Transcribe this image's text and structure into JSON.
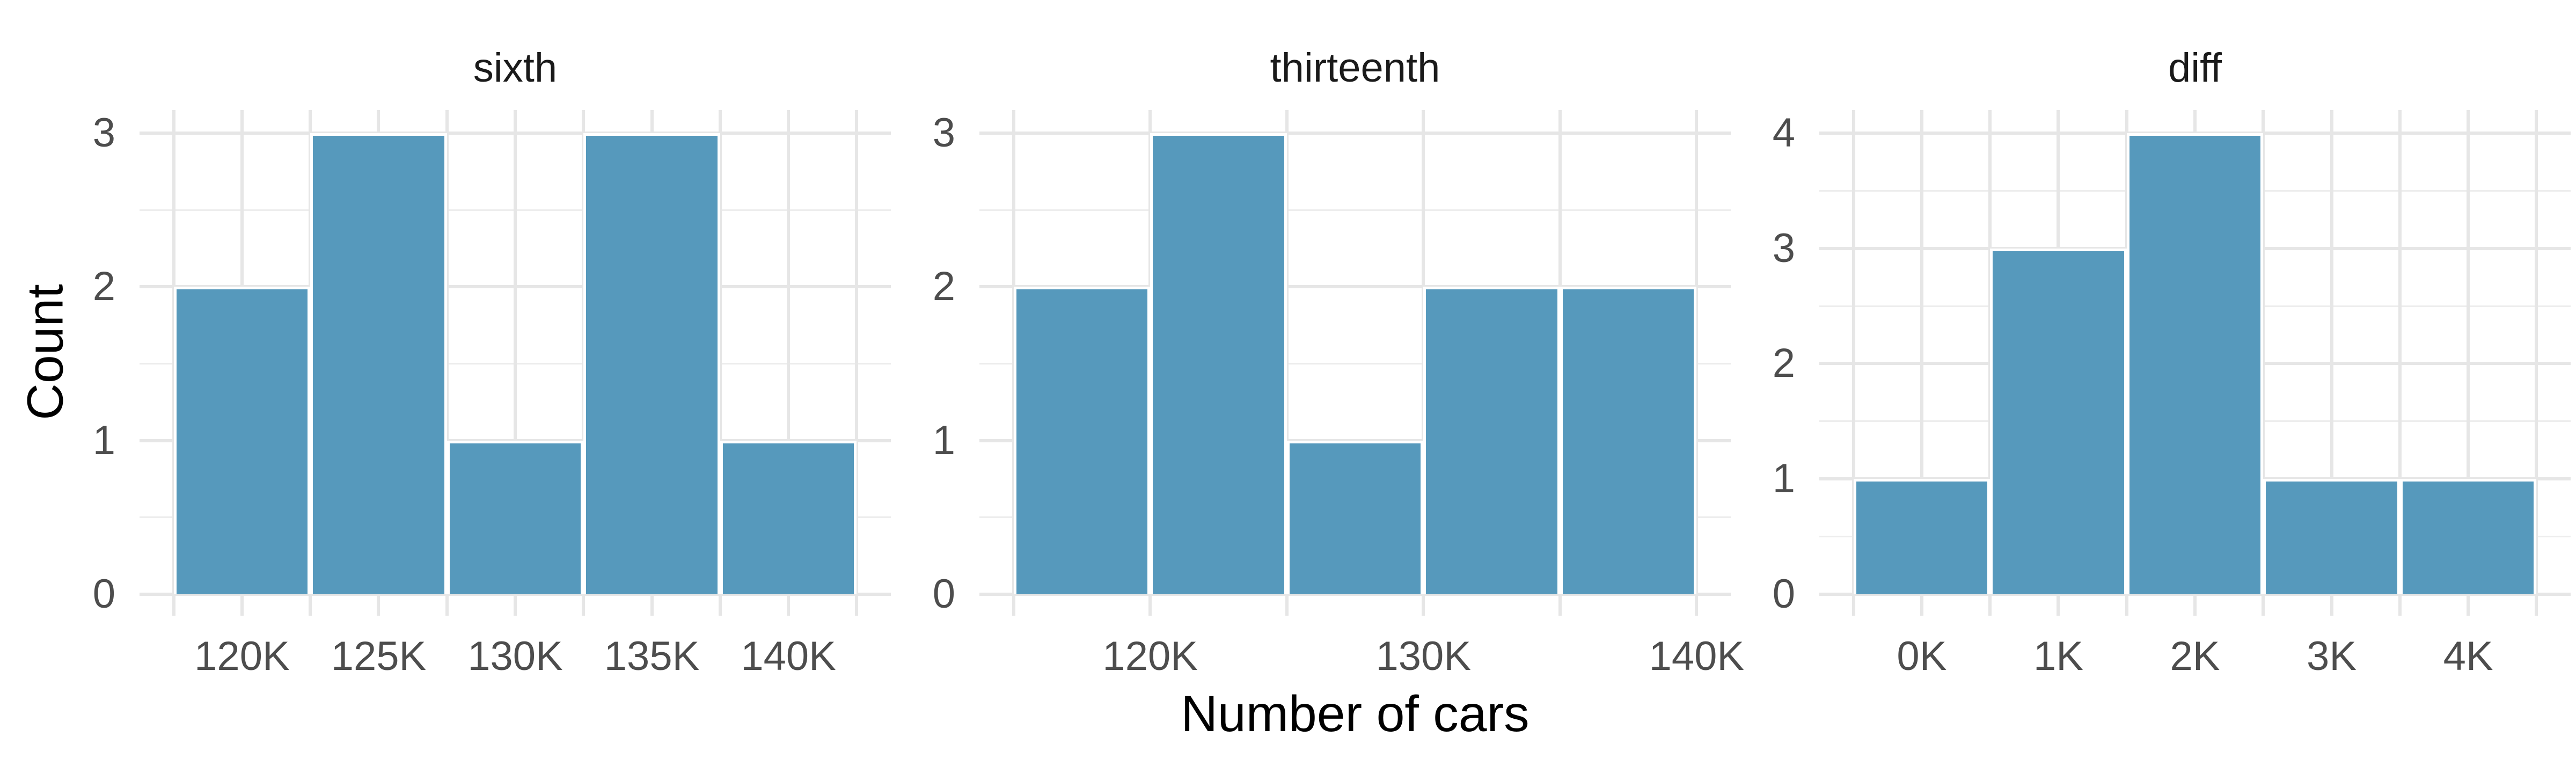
{
  "figure": {
    "ylabel": "Count",
    "xlabel": "Number of cars"
  },
  "style": {
    "bar_fill": "#5699BC",
    "grid_major": "#E6E6E6",
    "grid_minor": "#EDEDED",
    "tick_label_color": "#4D4D4D",
    "facet_title_color": "#1A1A1A",
    "axis_title_color": "#000000",
    "background": "#FFFFFF"
  },
  "chart_data": [
    {
      "type": "bar",
      "title": "sixth",
      "xlabel": "Number of cars",
      "ylabel": "Count",
      "bin_edges": [
        117.5,
        122.5,
        127.5,
        132.5,
        137.5,
        142.5
      ],
      "counts": [
        2,
        3,
        1,
        3,
        1
      ],
      "xlim": [
        116.25,
        143.75
      ],
      "ylim": [
        0,
        3.15
      ],
      "x_breaks": [
        117.5,
        120,
        122.5,
        125,
        127.5,
        130,
        132.5,
        135,
        137.5,
        140,
        142.5
      ],
      "x_label_positions": [
        120,
        125,
        130,
        135,
        140
      ],
      "x_labels": [
        "120K",
        "125K",
        "130K",
        "135K",
        "140K"
      ],
      "y_breaks": [
        0,
        1,
        2,
        3
      ],
      "y_minor_breaks": [
        0.5,
        1.5,
        2.5
      ],
      "y_labels": [
        "0",
        "1",
        "2",
        "3"
      ],
      "grid": true,
      "legend": "none"
    },
    {
      "type": "bar",
      "title": "thirteenth",
      "xlabel": "Number of cars",
      "ylabel": "Count",
      "bin_edges": [
        115,
        120,
        125,
        130,
        135,
        140
      ],
      "counts": [
        2,
        3,
        1,
        2,
        2
      ],
      "xlim": [
        113.75,
        141.25
      ],
      "ylim": [
        0,
        3.15
      ],
      "x_breaks": [
        115,
        120,
        125,
        130,
        135,
        140
      ],
      "x_label_positions": [
        120,
        130,
        140
      ],
      "x_labels": [
        "120K",
        "130K",
        "140K"
      ],
      "y_breaks": [
        0,
        1,
        2,
        3
      ],
      "y_minor_breaks": [
        0.5,
        1.5,
        2.5
      ],
      "y_labels": [
        "0",
        "1",
        "2",
        "3"
      ],
      "grid": true,
      "legend": "none"
    },
    {
      "type": "bar",
      "title": "diff",
      "xlabel": "Number of cars",
      "ylabel": "Count",
      "bin_edges": [
        -0.5,
        0.5,
        1.5,
        2.5,
        3.5,
        4.5
      ],
      "counts": [
        1,
        3,
        4,
        1,
        1
      ],
      "xlim": [
        -0.75,
        4.75
      ],
      "ylim": [
        0,
        4.2
      ],
      "x_breaks": [
        -0.5,
        0,
        0.5,
        1,
        1.5,
        2,
        2.5,
        3,
        3.5,
        4,
        4.5
      ],
      "x_label_positions": [
        0,
        1,
        2,
        3,
        4
      ],
      "x_labels": [
        "0K",
        "1K",
        "2K",
        "3K",
        "4K"
      ],
      "y_breaks": [
        0,
        1,
        2,
        3,
        4
      ],
      "y_minor_breaks": [
        0.5,
        1.5,
        2.5,
        3.5
      ],
      "y_labels": [
        "0",
        "1",
        "2",
        "3",
        "4"
      ],
      "grid": true,
      "legend": "none"
    }
  ]
}
